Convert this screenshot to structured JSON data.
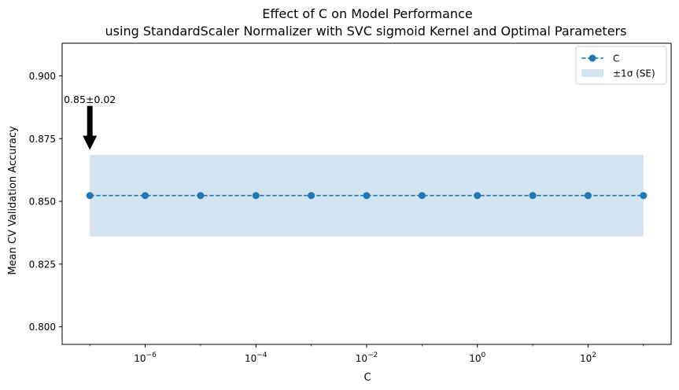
{
  "chart_data": {
    "type": "line",
    "title": "Effect of C on Model Performance",
    "subtitle": "using StandardScaler Normalizer with SVC sigmoid Kernel and Optimal Parameters",
    "xlabel": "C",
    "ylabel": "Mean CV Validation Accuracy",
    "xscale": "log",
    "x": [
      1e-07,
      1e-06,
      1e-05,
      0.0001,
      0.001,
      0.01,
      0.1,
      1.0,
      10.0,
      100.0,
      1000.0
    ],
    "series": [
      {
        "name": "C",
        "values": [
          0.8523,
          0.8523,
          0.8523,
          0.8523,
          0.8523,
          0.8523,
          0.8523,
          0.8523,
          0.8523,
          0.8523,
          0.8523
        ],
        "color": "#1f77b4",
        "style": "dashed line with circle markers"
      }
    ],
    "band": {
      "name": "±1σ (SE)",
      "lower": 0.836,
      "upper": 0.8685,
      "color": "#1f77b4"
    },
    "ylim": [
      0.793,
      0.913
    ],
    "xlim_log10": [
      -7.5,
      3.5
    ],
    "y_ticks": [
      "0.800",
      "0.825",
      "0.850",
      "0.875",
      "0.900"
    ],
    "y_tick_values": [
      0.8,
      0.825,
      0.85,
      0.875,
      0.9
    ],
    "x_ticks": [
      {
        "base": "10",
        "exp": "−6",
        "log": -6
      },
      {
        "base": "10",
        "exp": "−4",
        "log": -4
      },
      {
        "base": "10",
        "exp": "−2",
        "log": -2
      },
      {
        "base": "10",
        "exp": "0",
        "log": 0
      },
      {
        "base": "10",
        "exp": "2",
        "log": 2
      }
    ],
    "annotation": {
      "text": "0.85±0.02",
      "x": 1e-07,
      "y_arrow_tip": 0.8705,
      "y_text": 0.8905
    },
    "legend_placement": "top-right",
    "grid": false
  }
}
